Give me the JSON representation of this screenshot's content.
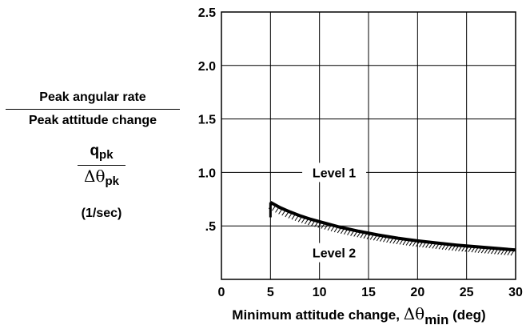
{
  "chart_data": {
    "type": "line",
    "xlabel": "Minimum attitude change, Δθmin (deg)",
    "xlabel_parts": {
      "pre": "Minimum attitude change, ",
      "symbol": "Δθ",
      "sub": "min",
      "post": " (deg)"
    },
    "ylabel_line1": "Peak angular rate",
    "ylabel_line2": "Peak attitude change",
    "ratio_numerator": {
      "base": "q",
      "sub": "pk"
    },
    "ratio_denominator": {
      "symbol": "Δθ",
      "sub": "pk"
    },
    "ratio_unit": "(1/sec)",
    "xlim": [
      0,
      30
    ],
    "ylim": [
      0,
      2.5
    ],
    "x_ticks": [
      0,
      5,
      10,
      15,
      20,
      25,
      30
    ],
    "x_tick_labels": [
      "0",
      "5",
      "10",
      "15",
      "20",
      "25",
      "30"
    ],
    "y_ticks": [
      0.5,
      1.0,
      1.5,
      2.0,
      2.5
    ],
    "y_tick_labels": [
      ".5",
      "1.0",
      "1.5",
      "2.0",
      "2.5"
    ],
    "grid": true,
    "series": [
      {
        "x": [
          5,
          6,
          7,
          8,
          9,
          10,
          12,
          14,
          16,
          18,
          20,
          22,
          24,
          26,
          28,
          30
        ],
        "y": [
          0.72,
          0.67,
          0.63,
          0.595,
          0.565,
          0.54,
          0.49,
          0.45,
          0.415,
          0.385,
          0.36,
          0.34,
          0.32,
          0.305,
          0.29,
          0.275
        ]
      }
    ],
    "boundary_tick": {
      "x": 5,
      "y_from": 0.72,
      "y_to": 0.58
    },
    "annotations": [
      {
        "text": "Level 1",
        "x": 11.5,
        "y": 1.0
      },
      {
        "text": "Level 2",
        "x": 11.5,
        "y": 0.25
      }
    ],
    "style": {
      "line_color": "#000000",
      "hatch_color": "#000000",
      "grid_color": "#000000"
    }
  }
}
